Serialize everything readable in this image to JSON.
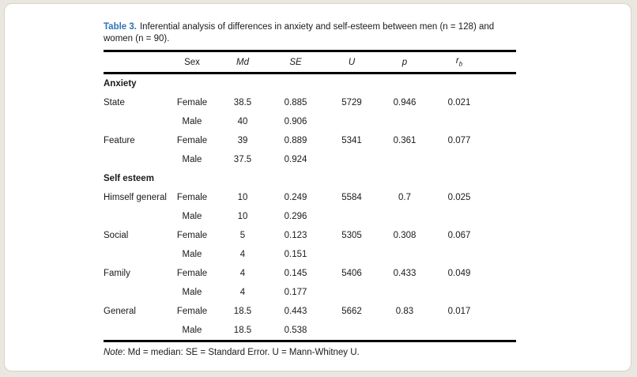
{
  "title": {
    "label": "Table 3.",
    "text": "Inferential analysis of differences in anxiety and self-esteem between men (n = 128) and women (n = 90)."
  },
  "colors": {
    "title_label": "#2e74b5",
    "body_text": "#1a1a1a",
    "rule": "#000000",
    "card_background": "#ffffff",
    "card_border": "#d8d5ca",
    "page_background": "#e9e7e0"
  },
  "table": {
    "columns": {
      "label": "",
      "sex": "Sex",
      "md": "Md",
      "se": "SE",
      "u": "U",
      "p": "p",
      "rb_base": "r",
      "rb_sub": "b"
    },
    "rows": [
      {
        "type": "section",
        "label": "Anxiety"
      },
      {
        "type": "data",
        "label": "State",
        "sex": "Female",
        "md": "38.5",
        "se": "0.885",
        "u": "5729",
        "p": "0.946",
        "rb": "0.021"
      },
      {
        "type": "data",
        "label": "",
        "sex": "Male",
        "md": "40",
        "se": "0.906",
        "u": "",
        "p": "",
        "rb": ""
      },
      {
        "type": "data",
        "label": "Feature",
        "sex": "Female",
        "md": "39",
        "se": "0.889",
        "u": "5341",
        "p": "0.361",
        "rb": "0.077"
      },
      {
        "type": "data",
        "label": "",
        "sex": "Male",
        "md": "37.5",
        "se": "0.924",
        "u": "",
        "p": "",
        "rb": ""
      },
      {
        "type": "section",
        "label": "Self esteem"
      },
      {
        "type": "data",
        "label": "Himself general",
        "sex": "Female",
        "md": "10",
        "se": "0.249",
        "u": "5584",
        "p": "0.7",
        "rb": "0.025"
      },
      {
        "type": "data",
        "label": "",
        "sex": "Male",
        "md": "10",
        "se": "0.296",
        "u": "",
        "p": "",
        "rb": ""
      },
      {
        "type": "data",
        "label": "Social",
        "sex": "Female",
        "md": "5",
        "se": "0.123",
        "u": "5305",
        "p": "0.308",
        "rb": "0.067"
      },
      {
        "type": "data",
        "label": "",
        "sex": "Male",
        "md": "4",
        "se": "0.151",
        "u": "",
        "p": "",
        "rb": ""
      },
      {
        "type": "data",
        "label": "Family",
        "sex": "Female",
        "md": "4",
        "se": "0.145",
        "u": "5406",
        "p": "0.433",
        "rb": "0.049"
      },
      {
        "type": "data",
        "label": "",
        "sex": "Male",
        "md": "4",
        "se": "0.177",
        "u": "",
        "p": "",
        "rb": ""
      },
      {
        "type": "data",
        "label": "General",
        "sex": "Female",
        "md": "18.5",
        "se": "0.443",
        "u": "5662",
        "p": "0.83",
        "rb": "0.017"
      },
      {
        "type": "data",
        "label": "",
        "sex": "Male",
        "md": "18.5",
        "se": "0.538",
        "u": "",
        "p": "",
        "rb": ""
      }
    ]
  },
  "note": {
    "label": "Note",
    "text": ": Md = median: SE = Standard Error. U = Mann-Whitney U."
  }
}
